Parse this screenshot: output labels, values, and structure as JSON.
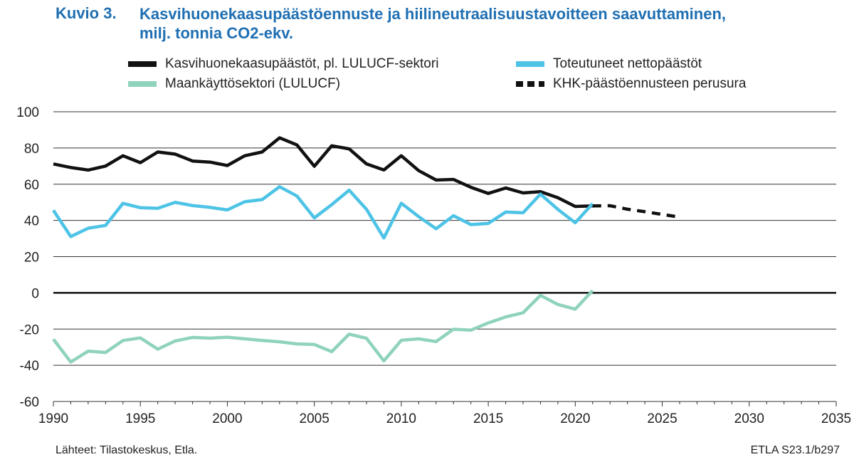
{
  "header": {
    "figure_label": "Kuvio 3.",
    "title_line1": "Kasvihuonekaasupäästöennuste ja hiilineutraalisuustavoitteen saavuttaminen,",
    "title_line2": "milj. tonnia CO2-ekv."
  },
  "legend": [
    {
      "label": "Kasvihuonekaasupäästöt, pl. LULUCF-sektori",
      "color": "#111111",
      "style": "solid"
    },
    {
      "label": "Maankäyttösektori (LULUCF)",
      "color": "#8fd3bb",
      "style": "solid"
    },
    {
      "label": "Toteutuneet nettopäästöt",
      "color": "#4dc3e6",
      "style": "solid"
    },
    {
      "label": "KHK-päästöennusteen perusura",
      "color": "#111111",
      "style": "dashed"
    }
  ],
  "chart_data": {
    "type": "line",
    "xlim": [
      1990,
      2035
    ],
    "ylim": [
      -60,
      100
    ],
    "x_ticks": [
      "1990",
      "1995",
      "2000",
      "2005",
      "2010",
      "2015",
      "2020",
      "2025",
      "2030",
      "2035"
    ],
    "y_ticks": [
      "100",
      "80",
      "60",
      "40",
      "20",
      "0",
      "-20",
      "-40",
      "-60"
    ],
    "grid": true,
    "series": [
      {
        "name": "Kasvihuonekaasupäästöt, pl. LULUCF-sektori",
        "color": "#111111",
        "style": "solid",
        "x": [
          1990,
          1991,
          1992,
          1993,
          1994,
          1995,
          1996,
          1997,
          1998,
          1999,
          2000,
          2001,
          2002,
          2003,
          2004,
          2005,
          2006,
          2007,
          2008,
          2009,
          2010,
          2011,
          2012,
          2013,
          2014,
          2015,
          2016,
          2017,
          2018,
          2019,
          2020,
          2021
        ],
        "y": [
          71.2,
          69.2,
          67.8,
          70.0,
          75.7,
          71.9,
          77.8,
          76.6,
          72.8,
          72.2,
          70.3,
          75.7,
          77.8,
          85.6,
          81.7,
          69.9,
          81.2,
          79.5,
          71.2,
          67.9,
          75.7,
          67.5,
          62.3,
          62.6,
          58.3,
          54.9,
          57.9,
          55.2,
          55.9,
          52.5,
          47.7,
          48.0
        ]
      },
      {
        "name": "Toteutuneet nettopäästöt",
        "color": "#4dc3e6",
        "style": "solid",
        "x": [
          1990,
          1991,
          1992,
          1993,
          1994,
          1995,
          1996,
          1997,
          1998,
          1999,
          2000,
          2001,
          2002,
          2003,
          2004,
          2005,
          2006,
          2007,
          2008,
          2009,
          2010,
          2011,
          2012,
          2013,
          2014,
          2015,
          2016,
          2017,
          2018,
          2019,
          2020,
          2021
        ],
        "y": [
          45.6,
          31.1,
          35.7,
          37.2,
          49.4,
          47.0,
          46.7,
          50.0,
          48.2,
          47.2,
          45.8,
          50.3,
          51.5,
          58.6,
          53.5,
          41.4,
          48.7,
          56.7,
          46.1,
          30.3,
          49.5,
          42.1,
          35.4,
          42.6,
          37.7,
          38.3,
          44.6,
          44.2,
          54.5,
          46.1,
          38.7,
          49.3
        ]
      },
      {
        "name": "Maankäyttösektori (LULUCF)",
        "color": "#8fd3bb",
        "style": "solid",
        "x": [
          1990,
          1991,
          1992,
          1993,
          1994,
          1995,
          1996,
          1997,
          1998,
          1999,
          2000,
          2001,
          2002,
          2003,
          2004,
          2005,
          2006,
          2007,
          2008,
          2009,
          2010,
          2011,
          2012,
          2013,
          2014,
          2015,
          2016,
          2017,
          2018,
          2019,
          2020,
          2021
        ],
        "y": [
          -25.6,
          -38.2,
          -32.2,
          -32.9,
          -26.3,
          -24.9,
          -31.1,
          -26.6,
          -24.6,
          -25.0,
          -24.5,
          -25.4,
          -26.3,
          -27.0,
          -28.2,
          -28.5,
          -32.5,
          -22.8,
          -25.1,
          -37.6,
          -26.2,
          -25.4,
          -26.9,
          -20.1,
          -20.6,
          -16.6,
          -13.3,
          -11.0,
          -1.4,
          -6.4,
          -9.0,
          1.3
        ]
      },
      {
        "name": "KHK-päästöennusteen perusura",
        "color": "#111111",
        "style": "dashed",
        "x": [
          2021,
          2022,
          2023,
          2024,
          2025,
          2026
        ],
        "y": [
          48.0,
          48.1,
          46.2,
          44.8,
          43.3,
          41.8
        ]
      }
    ]
  },
  "footer": {
    "source": "Lähteet: Tilastokeskus, Etla.",
    "code": "ETLA S23.1/b297"
  }
}
